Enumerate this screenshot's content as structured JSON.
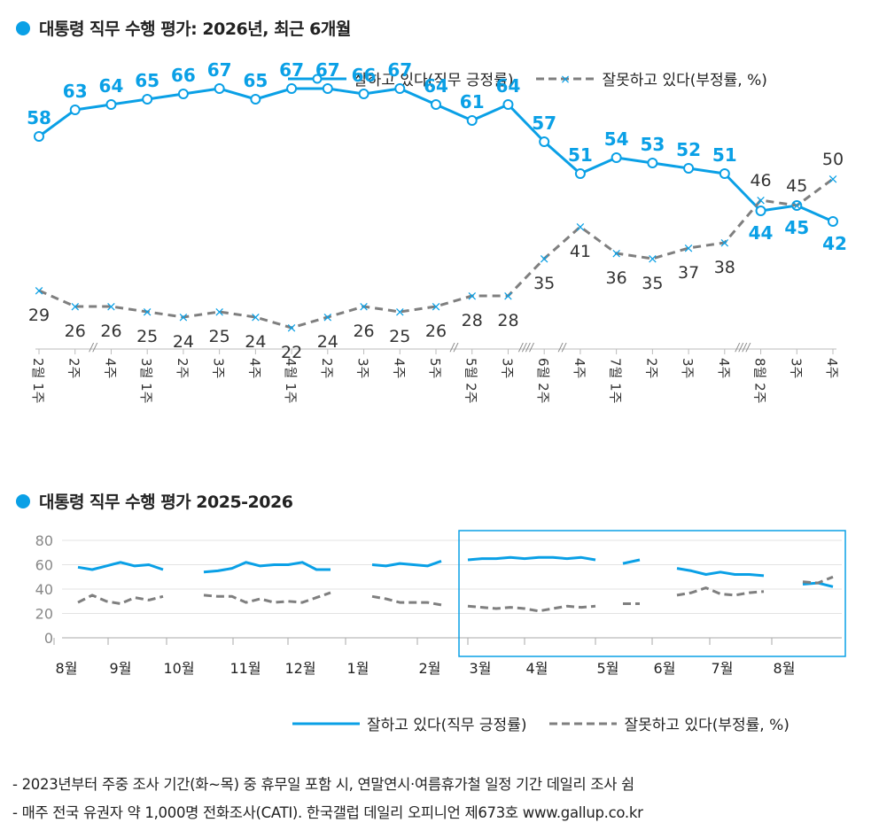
{
  "colors": {
    "approve": "#0aa0e6",
    "disapprove": "#7f7f7f",
    "box": "#0aa0e6"
  },
  "chart_data": [
    {
      "type": "line",
      "title": "대통령 직무 수행 평가: 2026년, 최근 6개월",
      "categories": [
        "2월 1주",
        "2주",
        "4주",
        "3월 1주",
        "2주",
        "3주",
        "4주",
        "4월 1주",
        "2주",
        "3주",
        "4주",
        "5주",
        "5월 2주",
        "3주",
        "6월 2주",
        "4주",
        "7월 1주",
        "2주",
        "3주",
        "4주",
        "8월 2주",
        "3주",
        "4주"
      ],
      "tick_lines": [
        [
          "2월",
          "1주"
        ],
        [
          "2주"
        ],
        [
          "4주"
        ],
        [
          "3월",
          "1주"
        ],
        [
          "2주"
        ],
        [
          "3주"
        ],
        [
          "4주"
        ],
        [
          "4월",
          "1주"
        ],
        [
          "2주"
        ],
        [
          "3주"
        ],
        [
          "4주"
        ],
        [
          "5주"
        ],
        [
          "5월",
          "2주"
        ],
        [
          "3주"
        ],
        [
          "6월",
          "2주"
        ],
        [
          "4주"
        ],
        [
          "7월",
          "1주"
        ],
        [
          "2주"
        ],
        [
          "3주"
        ],
        [
          "4주"
        ],
        [
          "8월",
          "2주"
        ],
        [
          "3주"
        ],
        [
          "4주"
        ]
      ],
      "break_marks": [
        "//",
        "//",
        "////",
        "//",
        "////"
      ],
      "series": [
        {
          "name": "잘하고 있다(직무 긍정률)",
          "values": [
            58,
            63,
            64,
            65,
            66,
            67,
            65,
            67,
            67,
            66,
            67,
            64,
            61,
            64,
            57,
            51,
            54,
            53,
            52,
            51,
            44,
            45,
            42
          ]
        },
        {
          "name": "잘못하고 있다(부정률, %)",
          "values": [
            29,
            26,
            26,
            25,
            24,
            25,
            24,
            22,
            24,
            26,
            25,
            26,
            28,
            28,
            35,
            41,
            36,
            35,
            37,
            38,
            46,
            45,
            50
          ]
        }
      ]
    },
    {
      "type": "line",
      "title": "대통령 직무 수행 평가 2025-2026",
      "ylim": [
        0,
        80
      ],
      "yticks": [
        "0",
        "20",
        "40",
        "60",
        "80"
      ],
      "xticks": [
        "8월",
        "9월",
        "10월",
        "11월",
        "12월",
        "1월",
        "2월",
        "3월",
        "4월",
        "5월",
        "6월",
        "7월",
        "8월"
      ],
      "series": [
        {
          "name": "잘하고 있다(직무 긍정률)",
          "segments": [
            [
              58,
              56,
              59,
              62,
              59,
              60,
              56
            ],
            [
              54,
              55,
              57,
              62,
              59,
              60,
              60,
              62,
              56,
              56
            ],
            [
              60,
              59,
              61,
              60,
              59,
              63
            ],
            [
              64,
              65,
              65,
              66,
              65,
              66,
              66,
              65,
              66,
              64
            ],
            [
              61,
              64
            ],
            [
              57,
              55,
              52,
              54,
              52,
              52,
              51
            ],
            [
              44,
              45,
              42
            ]
          ]
        },
        {
          "name": "잘못하고 있다(부정률, %)",
          "segments": [
            [
              29,
              35,
              30,
              28,
              33,
              31,
              34
            ],
            [
              35,
              34,
              34,
              29,
              32,
              29,
              30,
              29,
              33,
              37
            ],
            [
              34,
              32,
              29,
              29,
              29,
              27
            ],
            [
              26,
              25,
              24,
              25,
              24,
              22,
              24,
              26,
              25,
              26
            ],
            [
              28,
              28
            ],
            [
              35,
              37,
              41,
              36,
              35,
              37,
              38
            ],
            [
              46,
              45,
              50
            ]
          ]
        }
      ]
    }
  ],
  "legend": {
    "approve": "잘하고 있다(직무 긍정률)",
    "disapprove": "잘못하고 있다(부정률, %)"
  },
  "notes": [
    "- 2023년부터 주중 조사 기간(화~목) 중 휴무일 포함 시, 연말연시·여름휴가철 일정 기간 데일리 조사 쉼",
    "- 매주 전국 유권자 약 1,000명 전화조사(CATI). 한국갤럽 데일리 오피니언 제673호 www.gallup.co.kr"
  ]
}
